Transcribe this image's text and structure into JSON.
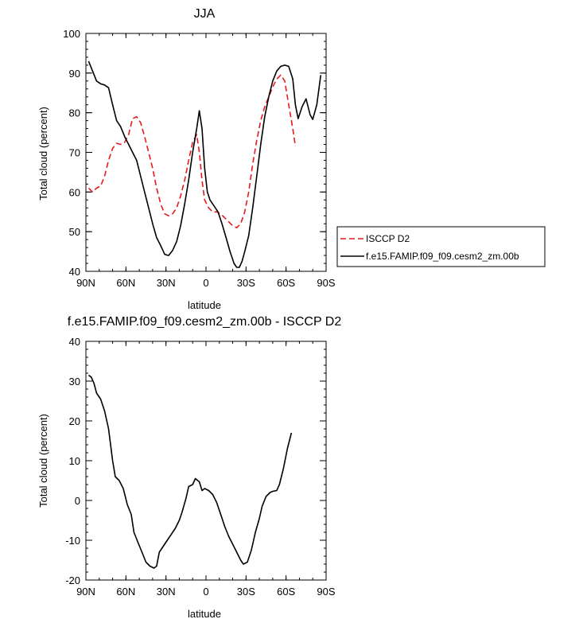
{
  "chart_data": [
    {
      "type": "line",
      "title": "JJA",
      "xlabel": "latitude",
      "ylabel": "Total cloud (percent)",
      "xlim": [
        90,
        -90
      ],
      "ylim": [
        40,
        100
      ],
      "x_ticks": [
        90,
        60,
        30,
        0,
        -30,
        -60,
        -90
      ],
      "x_tick_labels": [
        "90N",
        "60N",
        "30N",
        "0",
        "30S",
        "60S",
        "90S"
      ],
      "y_ticks": [
        40,
        50,
        60,
        70,
        80,
        90,
        100
      ],
      "y_tick_labels": [
        "40",
        "50",
        "60",
        "70",
        "80",
        "90",
        "100"
      ],
      "grid": false,
      "legend": {
        "placement": "right"
      },
      "series": [
        {
          "name": "ISCCP D2",
          "color": "#e8191d",
          "dash": "dashed",
          "points": [
            [
              88,
              61
            ],
            [
              85,
              60
            ],
            [
              82,
              61
            ],
            [
              79,
              61.5
            ],
            [
              76,
              64
            ],
            [
              73,
              68
            ],
            [
              70,
              71
            ],
            [
              67,
              72.3
            ],
            [
              64,
              72
            ],
            [
              61,
              72.5
            ],
            [
              58,
              74.5
            ],
            [
              55,
              78.5
            ],
            [
              52,
              79
            ],
            [
              49,
              77.5
            ],
            [
              46,
              74
            ],
            [
              43,
              70
            ],
            [
              40,
              66
            ],
            [
              37,
              61
            ],
            [
              34,
              57
            ],
            [
              31,
              54.5
            ],
            [
              28,
              54
            ],
            [
              25,
              54.5
            ],
            [
              22,
              56
            ],
            [
              19,
              59
            ],
            [
              16,
              63
            ],
            [
              13,
              68
            ],
            [
              10,
              72.5
            ],
            [
              7,
              74.5
            ],
            [
              5,
              70
            ],
            [
              3,
              63
            ],
            [
              1,
              58
            ],
            [
              -2,
              56
            ],
            [
              -5,
              55
            ],
            [
              -8,
              55
            ],
            [
              -11,
              54.5
            ],
            [
              -14,
              53.5
            ],
            [
              -17,
              52.5
            ],
            [
              -20,
              51.5
            ],
            [
              -23,
              51
            ],
            [
              -26,
              52
            ],
            [
              -29,
              55
            ],
            [
              -32,
              60
            ],
            [
              -35,
              67
            ],
            [
              -38,
              73
            ],
            [
              -41,
              78
            ],
            [
              -44,
              81.5
            ],
            [
              -47,
              84
            ],
            [
              -50,
              86.5
            ],
            [
              -53,
              88.5
            ],
            [
              -56,
              89.5
            ],
            [
              -59,
              88
            ],
            [
              -62,
              82
            ],
            [
              -65,
              76
            ],
            [
              -67,
              71.5
            ]
          ]
        },
        {
          "name": "f.e15.FAMIP.f09_f09.cesm2_zm.00b",
          "color": "#000000",
          "dash": "solid",
          "points": [
            [
              88,
              93
            ],
            [
              85,
              90.5
            ],
            [
              82,
              88
            ],
            [
              79,
              87.3
            ],
            [
              76,
              87
            ],
            [
              73,
              86.3
            ],
            [
              70,
              82
            ],
            [
              67,
              78
            ],
            [
              64,
              76.5
            ],
            [
              61,
              74
            ],
            [
              58,
              72
            ],
            [
              55,
              70
            ],
            [
              52,
              68
            ],
            [
              49,
              64
            ],
            [
              46,
              60
            ],
            [
              43,
              56
            ],
            [
              40,
              52
            ],
            [
              37,
              48.5
            ],
            [
              34,
              46.5
            ],
            [
              31,
              44.3
            ],
            [
              28,
              44
            ],
            [
              25,
              45.3
            ],
            [
              22,
              47.5
            ],
            [
              19,
              51.5
            ],
            [
              16,
              57
            ],
            [
              13,
              63
            ],
            [
              10,
              70
            ],
            [
              7,
              76
            ],
            [
              5,
              80.5
            ],
            [
              3,
              76
            ],
            [
              1,
              66
            ],
            [
              -1,
              60
            ],
            [
              -3,
              58
            ],
            [
              -6,
              56.5
            ],
            [
              -9,
              55
            ],
            [
              -12,
              52
            ],
            [
              -15,
              48.5
            ],
            [
              -18,
              45
            ],
            [
              -21,
              42
            ],
            [
              -23,
              41
            ],
            [
              -25,
              41
            ],
            [
              -27,
              42.5
            ],
            [
              -29,
              45
            ],
            [
              -32,
              49
            ],
            [
              -35,
              56
            ],
            [
              -38,
              64
            ],
            [
              -41,
              72
            ],
            [
              -44,
              79
            ],
            [
              -47,
              84
            ],
            [
              -50,
              88
            ],
            [
              -53,
              90.5
            ],
            [
              -56,
              91.7
            ],
            [
              -59,
              92
            ],
            [
              -62,
              91.7
            ],
            [
              -65,
              88.5
            ],
            [
              -67,
              82
            ],
            [
              -69,
              78.5
            ],
            [
              -72,
              81.5
            ],
            [
              -75,
              83.5
            ],
            [
              -78,
              79.5
            ],
            [
              -80,
              78.3
            ],
            [
              -83,
              82
            ],
            [
              -86,
              89.5
            ]
          ]
        }
      ]
    },
    {
      "type": "line",
      "title": "f.e15.FAMIP.f09_f09.cesm2_zm.00b - ISCCP D2",
      "xlabel": "latitude",
      "ylabel": "Total cloud (percent)",
      "xlim": [
        90,
        -90
      ],
      "ylim": [
        -20,
        40
      ],
      "x_ticks": [
        90,
        60,
        30,
        0,
        -30,
        -60,
        -90
      ],
      "x_tick_labels": [
        "90N",
        "60N",
        "30N",
        "0",
        "30S",
        "60S",
        "90S"
      ],
      "y_ticks": [
        -20,
        -10,
        0,
        10,
        20,
        30,
        40
      ],
      "y_tick_labels": [
        "-20",
        "-10",
        "0",
        "10",
        "20",
        "30",
        "40"
      ],
      "grid": false,
      "series": [
        {
          "color": "#000000",
          "dash": "solid",
          "points": [
            [
              88,
              31.5
            ],
            [
              86,
              31
            ],
            [
              84,
              29.5
            ],
            [
              82,
              27
            ],
            [
              79,
              25.5
            ],
            [
              76,
              22.5
            ],
            [
              73,
              18
            ],
            [
              70,
              10
            ],
            [
              68,
              6
            ],
            [
              65,
              5
            ],
            [
              62,
              3
            ],
            [
              59,
              -1
            ],
            [
              56,
              -3.5
            ],
            [
              54,
              -8
            ],
            [
              51,
              -10.5
            ],
            [
              48,
              -13
            ],
            [
              45,
              -15.5
            ],
            [
              42,
              -16.5
            ],
            [
              39,
              -17
            ],
            [
              37,
              -16.5
            ],
            [
              35,
              -13
            ],
            [
              32,
              -11.5
            ],
            [
              29,
              -10
            ],
            [
              26,
              -8.5
            ],
            [
              23,
              -7
            ],
            [
              20,
              -5
            ],
            [
              18,
              -3
            ],
            [
              15,
              0.5
            ],
            [
              13,
              3.5
            ],
            [
              10,
              4
            ],
            [
              8,
              5.5
            ],
            [
              5,
              4.7
            ],
            [
              3,
              2.5
            ],
            [
              1,
              3
            ],
            [
              -2,
              2.5
            ],
            [
              -5,
              1.5
            ],
            [
              -8,
              -0.5
            ],
            [
              -11,
              -3.5
            ],
            [
              -14,
              -6.5
            ],
            [
              -17,
              -9
            ],
            [
              -20,
              -11
            ],
            [
              -23,
              -13
            ],
            [
              -26,
              -15
            ],
            [
              -28,
              -16
            ],
            [
              -31,
              -15.5
            ],
            [
              -34,
              -12.5
            ],
            [
              -37,
              -8
            ],
            [
              -40,
              -4.5
            ],
            [
              -42,
              -1.5
            ],
            [
              -45,
              1
            ],
            [
              -48,
              2
            ],
            [
              -50,
              2.3
            ],
            [
              -53,
              2.5
            ],
            [
              -55,
              4
            ],
            [
              -58,
              8
            ],
            [
              -61,
              13
            ],
            [
              -64,
              17
            ]
          ]
        }
      ]
    }
  ]
}
